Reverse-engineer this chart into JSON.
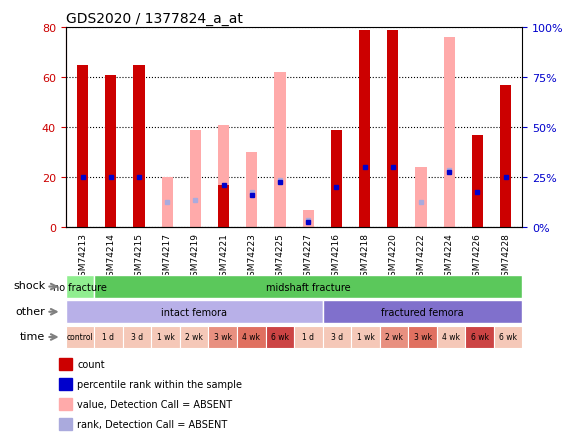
{
  "title": "GDS2020 / 1377824_a_at",
  "samples": [
    "GSM74213",
    "GSM74214",
    "GSM74215",
    "GSM74217",
    "GSM74219",
    "GSM74221",
    "GSM74223",
    "GSM74225",
    "GSM74227",
    "GSM74216",
    "GSM74218",
    "GSM74220",
    "GSM74222",
    "GSM74224",
    "GSM74226",
    "GSM74228"
  ],
  "red_bars": [
    65,
    61,
    65,
    0,
    0,
    17,
    0,
    0,
    0,
    39,
    79,
    79,
    0,
    0,
    37,
    57
  ],
  "pink_bars": [
    0,
    0,
    0,
    20,
    39,
    41,
    30,
    62,
    7,
    0,
    0,
    0,
    24,
    76,
    0,
    0
  ],
  "blue_dots": [
    20,
    20,
    20,
    0,
    0,
    17,
    13,
    18,
    2,
    16,
    24,
    24,
    0,
    22,
    14,
    20
  ],
  "lavender_dots": [
    0,
    0,
    0,
    10,
    11,
    0,
    14,
    19,
    3,
    0,
    0,
    0,
    10,
    23,
    0,
    0
  ],
  "ylim_left": [
    0,
    80
  ],
  "ylim_right": [
    0,
    100
  ],
  "yticks_left": [
    0,
    20,
    40,
    60,
    80
  ],
  "yticks_right": [
    0,
    25,
    50,
    75,
    100
  ],
  "shock_groups": [
    {
      "label": "no fracture",
      "start": 0,
      "end": 1,
      "color": "#90ee90"
    },
    {
      "label": "midshaft fracture",
      "start": 1,
      "end": 16,
      "color": "#5bc85b"
    }
  ],
  "other_groups": [
    {
      "label": "intact femora",
      "start": 0,
      "end": 9,
      "color": "#b8b0e8"
    },
    {
      "label": "fractured femora",
      "start": 9,
      "end": 16,
      "color": "#8070cc"
    }
  ],
  "time_labels_full": [
    "control",
    "1 d",
    "3 d",
    "1 wk",
    "2 wk",
    "3 wk",
    "4 wk",
    "6 wk",
    "1 d",
    "3 d",
    "1 wk",
    "2 wk",
    "3 wk",
    "4 wk",
    "6 wk",
    "6 wk"
  ],
  "time_colors_full": [
    "#f5c8b8",
    "#f5c8b8",
    "#f5c8b8",
    "#f5c8b8",
    "#f5c8b8",
    "#e89080",
    "#e07060",
    "#cc4444",
    "#f5c8b8",
    "#f5c8b8",
    "#f5c8b8",
    "#e89080",
    "#e07060",
    "#f5c8b8",
    "#cc4444",
    "#f5c8b8"
  ],
  "legend_labels": [
    "count",
    "percentile rank within the sample",
    "value, Detection Call = ABSENT",
    "rank, Detection Call = ABSENT"
  ],
  "legend_colors": [
    "#cc0000",
    "#0000cc",
    "#ffaaaa",
    "#aaaadd"
  ],
  "background_color": "#ffffff",
  "left_axis_color": "#cc0000",
  "right_axis_color": "#0000cc"
}
